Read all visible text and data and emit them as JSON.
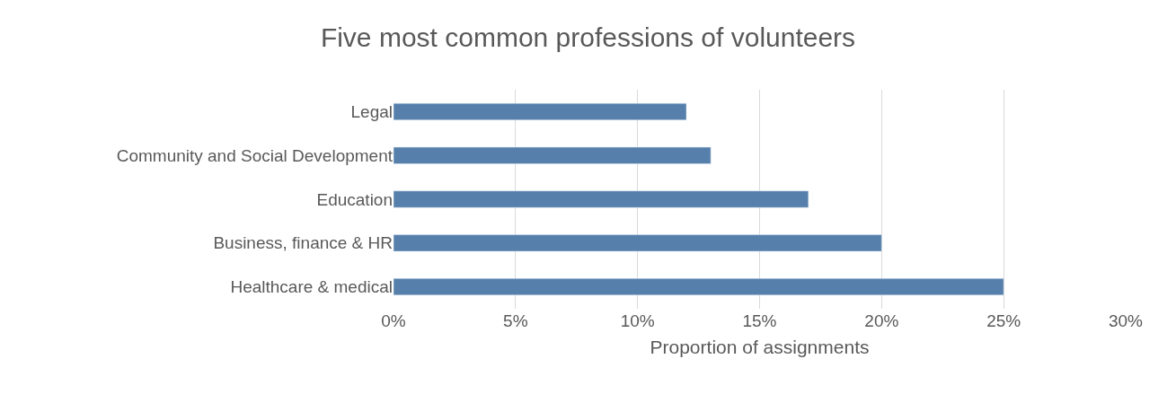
{
  "chart_data": {
    "type": "bar",
    "orientation": "horizontal",
    "title": "Five most common professions of volunteers",
    "xlabel": "Proportion of assignments",
    "categories": [
      "Legal",
      "Community and Social Development",
      "Education",
      "Business, finance & HR",
      "Healthcare & medical"
    ],
    "values": [
      12,
      13,
      17,
      20,
      25
    ],
    "color": "#5680ab",
    "xlim": [
      0,
      30
    ],
    "xticks": [
      {
        "value": 0,
        "label": "0%"
      },
      {
        "value": 5,
        "label": "5%"
      },
      {
        "value": 10,
        "label": "10%"
      },
      {
        "value": 15,
        "label": "15%"
      },
      {
        "value": 20,
        "label": "20%"
      },
      {
        "value": 25,
        "label": "25%"
      },
      {
        "value": 30,
        "label": "30%"
      }
    ],
    "grid": "x"
  }
}
